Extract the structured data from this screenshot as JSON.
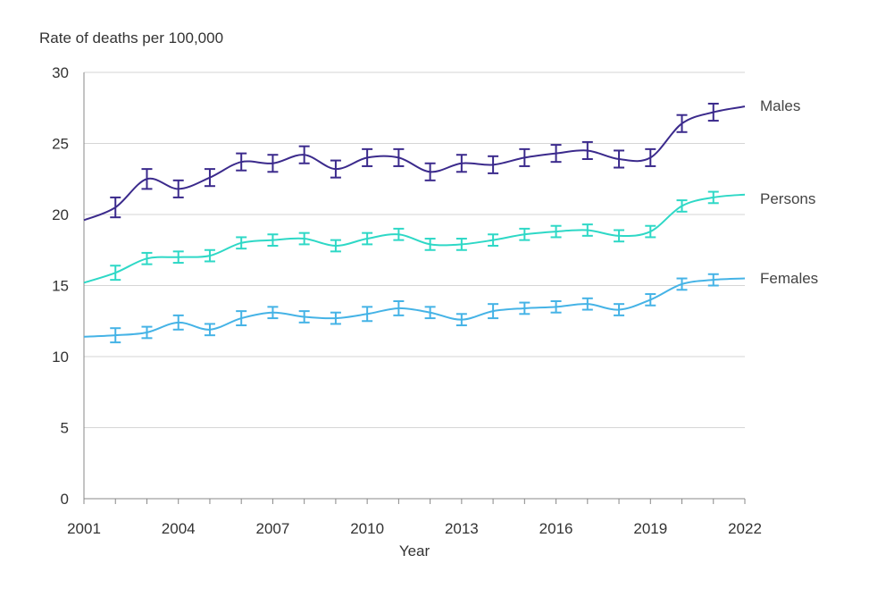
{
  "chart_data": {
    "type": "line",
    "title": "",
    "ylabel": "Rate of deaths per 100,000",
    "xlabel": "Year",
    "xlim": [
      2001,
      2022
    ],
    "ylim": [
      0,
      30
    ],
    "x_ticks": [
      2001,
      2004,
      2007,
      2010,
      2013,
      2016,
      2019,
      2022
    ],
    "y_ticks": [
      0,
      5,
      10,
      15,
      20,
      25,
      30
    ],
    "grid": "horizontal",
    "legend": "inline labels at right end of each line",
    "x": [
      2001,
      2002,
      2003,
      2004,
      2005,
      2006,
      2007,
      2008,
      2009,
      2010,
      2011,
      2012,
      2013,
      2014,
      2015,
      2016,
      2017,
      2018,
      2019,
      2020,
      2021,
      2022
    ],
    "series": [
      {
        "name": "Males",
        "color": "#3b2a8c",
        "values": [
          19.6,
          20.5,
          22.5,
          21.8,
          22.6,
          23.7,
          23.6,
          24.2,
          23.2,
          24.0,
          24.0,
          23.0,
          23.6,
          23.5,
          24.0,
          24.3,
          24.5,
          23.9,
          24.0,
          26.4,
          27.2,
          27.6
        ],
        "error": [
          null,
          0.7,
          0.7,
          0.6,
          0.6,
          0.6,
          0.6,
          0.6,
          0.6,
          0.6,
          0.6,
          0.6,
          0.6,
          0.6,
          0.6,
          0.6,
          0.6,
          0.6,
          0.6,
          0.6,
          0.6,
          null
        ]
      },
      {
        "name": "Persons",
        "color": "#2ed8c6",
        "values": [
          15.2,
          15.9,
          16.9,
          17.0,
          17.1,
          18.0,
          18.2,
          18.3,
          17.8,
          18.3,
          18.6,
          17.9,
          17.9,
          18.2,
          18.6,
          18.8,
          18.9,
          18.5,
          18.8,
          20.6,
          21.2,
          21.4
        ],
        "error": [
          null,
          0.5,
          0.4,
          0.4,
          0.4,
          0.4,
          0.4,
          0.4,
          0.4,
          0.4,
          0.4,
          0.4,
          0.4,
          0.4,
          0.4,
          0.4,
          0.4,
          0.4,
          0.4,
          0.4,
          0.4,
          null
        ]
      },
      {
        "name": "Females",
        "color": "#45b3e6",
        "values": [
          11.4,
          11.5,
          11.7,
          12.4,
          11.9,
          12.7,
          13.1,
          12.8,
          12.7,
          13.0,
          13.4,
          13.1,
          12.6,
          13.2,
          13.4,
          13.5,
          13.7,
          13.3,
          14.0,
          15.1,
          15.4,
          15.5
        ],
        "error": [
          null,
          0.5,
          0.4,
          0.5,
          0.4,
          0.5,
          0.4,
          0.4,
          0.4,
          0.5,
          0.5,
          0.4,
          0.4,
          0.5,
          0.4,
          0.4,
          0.4,
          0.4,
          0.4,
          0.4,
          0.4,
          null
        ]
      }
    ]
  }
}
